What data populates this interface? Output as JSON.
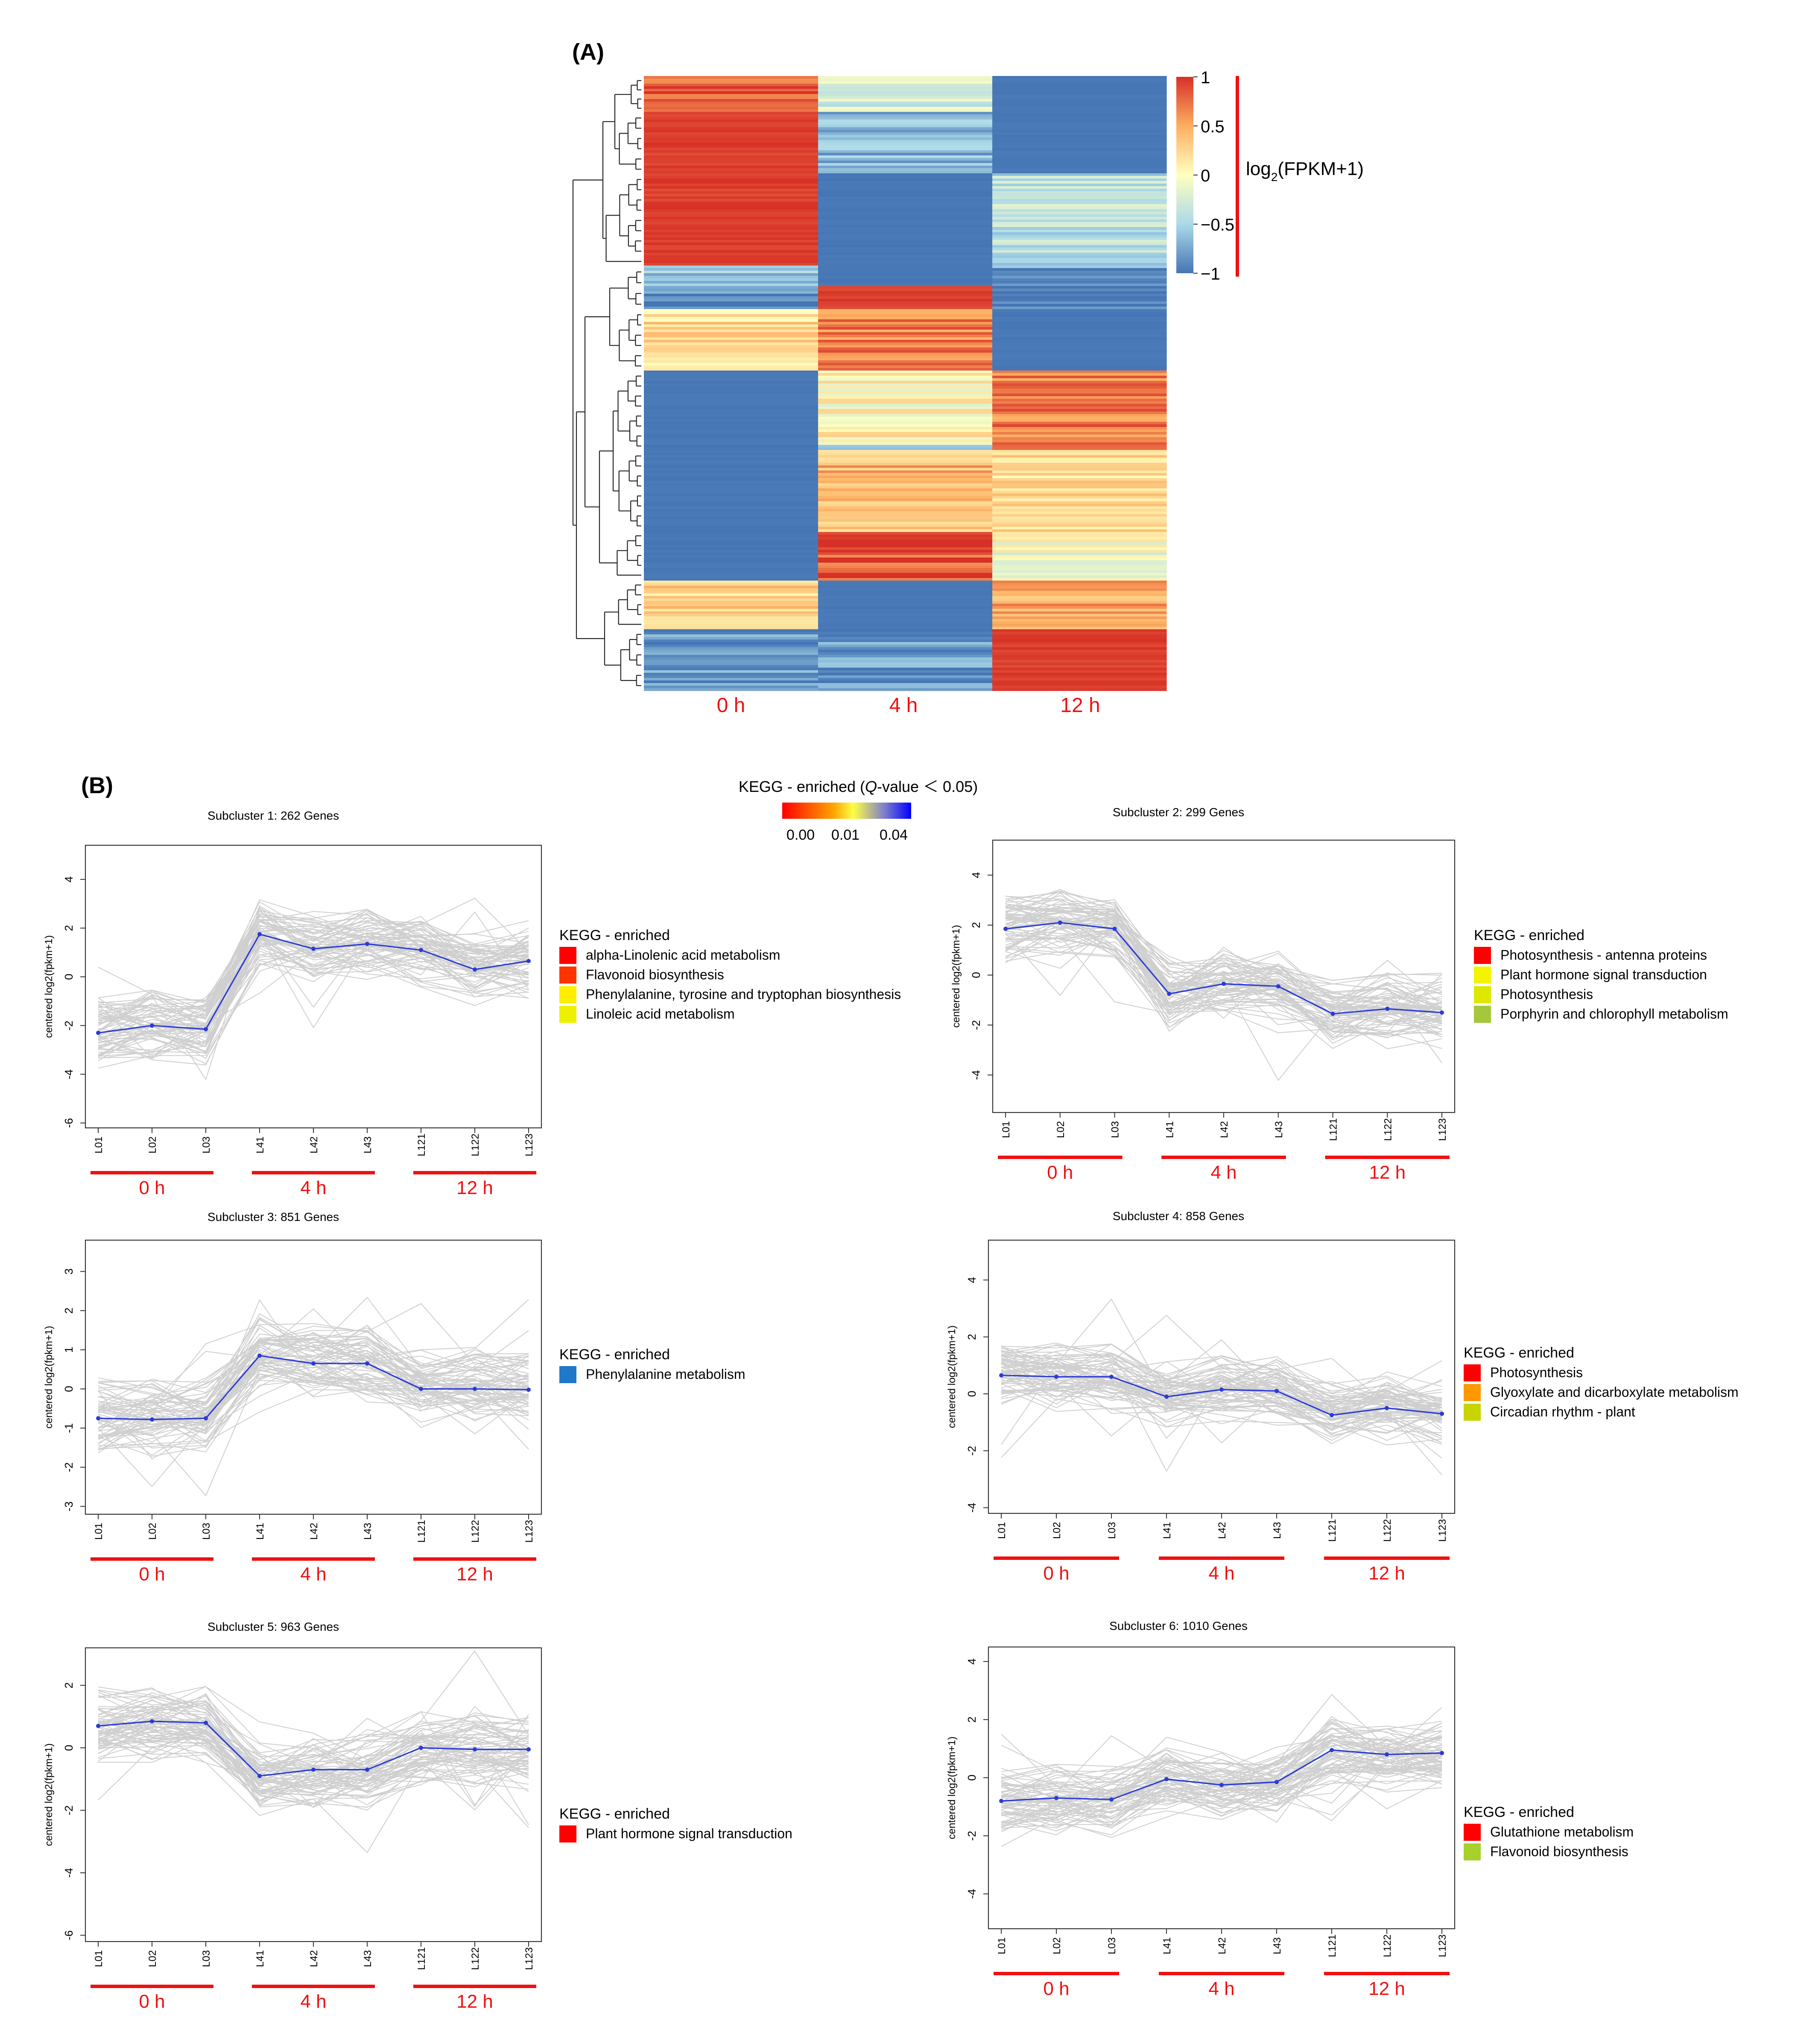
{
  "panel_a_label": "(A)",
  "panel_b_label": "(B)",
  "heatmap": {
    "columns": [
      "0 h",
      "4 h",
      "12 h"
    ],
    "colorbar": {
      "ticks": [
        "1",
        "0.5",
        "0",
        "−0.5",
        "−1"
      ],
      "tick_values": [
        1,
        0.5,
        0,
        -0.5,
        -1
      ]
    },
    "legend_label_main": "log",
    "legend_label_sub": "2",
    "legend_label_rest": "(FPKM+1)",
    "colors": {
      "high": "#d73027",
      "mid": "#ffffbf",
      "low": "#4575b4"
    },
    "blocks": [
      {
        "from": 0.0,
        "to": 0.06,
        "values": [
          0.85,
          -0.3,
          -1.0
        ]
      },
      {
        "from": 0.06,
        "to": 0.16,
        "values": [
          1.0,
          -0.7,
          -1.0
        ]
      },
      {
        "from": 0.16,
        "to": 0.31,
        "values": [
          1.0,
          -1.0,
          -0.4
        ]
      },
      {
        "from": 0.31,
        "to": 0.34,
        "values": [
          -0.6,
          -1.0,
          -0.8
        ]
      },
      {
        "from": 0.34,
        "to": 0.38,
        "values": [
          -0.9,
          1.0,
          -0.95
        ]
      },
      {
        "from": 0.38,
        "to": 0.48,
        "values": [
          0.2,
          0.65,
          -1.0
        ]
      },
      {
        "from": 0.48,
        "to": 0.6,
        "values": [
          -1.0,
          0.05,
          0.7
        ]
      },
      {
        "from": 0.6,
        "to": 0.61,
        "values": [
          -1.0,
          -0.45,
          0.95
        ]
      },
      {
        "from": 0.61,
        "to": 0.74,
        "values": [
          -1.0,
          0.4,
          0.25
        ]
      },
      {
        "from": 0.74,
        "to": 0.82,
        "values": [
          -1.0,
          0.85,
          -0.05
        ]
      },
      {
        "from": 0.82,
        "to": 0.9,
        "values": [
          0.3,
          -1.0,
          0.5
        ]
      },
      {
        "from": 0.9,
        "to": 1.0,
        "values": [
          -0.85,
          -0.8,
          1.0
        ]
      }
    ]
  },
  "kegg_legend": {
    "title_pre": "KEGG - enriched (",
    "title_q": "Q",
    "title_post": "-value ＜ 0.05)",
    "ticks": [
      "0.00",
      "0.01",
      "0.04"
    ]
  },
  "chart_data": [
    {
      "type": "line",
      "title": "Subcluster 1: 262 Genes",
      "ylabel": "centered log2(fpkm+1)",
      "categories": [
        "L01",
        "L02",
        "L03",
        "L41",
        "L42",
        "L43",
        "L121",
        "L122",
        "L123"
      ],
      "groups": [
        "0 h",
        "4 h",
        "12 h"
      ],
      "ylim": [
        -6.2,
        5.4
      ],
      "yticks": [
        -6,
        -4,
        -2,
        0,
        2,
        4
      ],
      "mean": [
        -2.3,
        -2.0,
        -2.15,
        1.75,
        1.15,
        1.35,
        1.1,
        0.3,
        0.65
      ],
      "spread": 1.1,
      "kegg_title": "KEGG - enriched",
      "kegg": [
        {
          "name": "alpha-Linolenic acid metabolism",
          "color": "#ff0000"
        },
        {
          "name": "Flavonoid biosynthesis",
          "color": "#ff3300"
        },
        {
          "name": "Phenylalanine, tyrosine and tryptophan biosynthesis",
          "color": "#ffee00"
        },
        {
          "name": "Linoleic acid metabolism",
          "color": "#eef000"
        }
      ]
    },
    {
      "type": "line",
      "title": "Subcluster 2: 299 Genes",
      "ylabel": "centered log2(fpkm+1)",
      "categories": [
        "L01",
        "L02",
        "L03",
        "L41",
        "L42",
        "L43",
        "L121",
        "L122",
        "L123"
      ],
      "groups": [
        "0 h",
        "4 h",
        "12 h"
      ],
      "ylim": [
        -5.5,
        5.4
      ],
      "yticks": [
        -4,
        -2,
        0,
        2,
        4
      ],
      "mean": [
        1.85,
        2.1,
        1.85,
        -0.75,
        -0.35,
        -0.45,
        -1.55,
        -1.35,
        -1.5
      ],
      "spread": 1.1,
      "kegg_title": "KEGG - enriched",
      "kegg": [
        {
          "name": "Photosynthesis - antenna proteins",
          "color": "#ff0000"
        },
        {
          "name": "Plant hormone signal transduction",
          "color": "#f4f400"
        },
        {
          "name": "Photosynthesis",
          "color": "#dde800"
        },
        {
          "name": "Porphyrin and chlorophyll metabolism",
          "color": "#a4c83a"
        }
      ]
    },
    {
      "type": "line",
      "title": "Subcluster 3: 851 Genes",
      "ylabel": "centered log2(fpkm+1)",
      "categories": [
        "L01",
        "L02",
        "L03",
        "L41",
        "L42",
        "L43",
        "L121",
        "L122",
        "L123"
      ],
      "groups": [
        "0 h",
        "4 h",
        "12 h"
      ],
      "ylim": [
        -3.2,
        3.8
      ],
      "yticks": [
        -3,
        -2,
        -1,
        0,
        1,
        2,
        3
      ],
      "mean": [
        -0.75,
        -0.78,
        -0.75,
        0.85,
        0.65,
        0.65,
        0.0,
        0.0,
        -0.02
      ],
      "spread": 0.75,
      "kegg_title": "KEGG - enriched",
      "kegg": [
        {
          "name": "Phenylalanine metabolism",
          "color": "#1f78c8"
        }
      ]
    },
    {
      "type": "line",
      "title": "Subcluster 4: 858 Genes",
      "ylabel": "centered log2(fpkm+1)",
      "categories": [
        "L01",
        "L02",
        "L03",
        "L41",
        "L42",
        "L43",
        "L121",
        "L122",
        "L123"
      ],
      "groups": [
        "0 h",
        "4 h",
        "12 h"
      ],
      "ylim": [
        -4.2,
        5.4
      ],
      "yticks": [
        -4,
        -2,
        0,
        2,
        4
      ],
      "mean": [
        0.65,
        0.6,
        0.6,
        -0.1,
        0.15,
        0.1,
        -0.75,
        -0.5,
        -0.7
      ],
      "spread": 0.9,
      "kegg_title": "KEGG - enriched",
      "kegg": [
        {
          "name": "Photosynthesis",
          "color": "#ff0000"
        },
        {
          "name": "Glyoxylate and dicarboxylate metabolism",
          "color": "#ff9900"
        },
        {
          "name": "Circadian rhythm - plant",
          "color": "#c8d400"
        }
      ]
    },
    {
      "type": "line",
      "title": "Subcluster 5: 963 Genes",
      "ylabel": "centered log2(fpkm+1)",
      "categories": [
        "L01",
        "L02",
        "L03",
        "L41",
        "L42",
        "L43",
        "L121",
        "L122",
        "L123"
      ],
      "groups": [
        "0 h",
        "4 h",
        "12 h"
      ],
      "ylim": [
        -6.2,
        3.2
      ],
      "yticks": [
        -6,
        -4,
        -2,
        0,
        2
      ],
      "mean": [
        0.7,
        0.85,
        0.8,
        -0.9,
        -0.7,
        -0.7,
        0.0,
        -0.05,
        -0.05
      ],
      "spread": 0.9,
      "kegg_title": "KEGG - enriched",
      "kegg": [
        {
          "name": "Plant hormone signal transduction",
          "color": "#ff0000"
        }
      ]
    },
    {
      "type": "line",
      "title": "Subcluster 6: 1010 Genes",
      "ylabel": "centered log2(fpkm+1)",
      "categories": [
        "L01",
        "L02",
        "L03",
        "L41",
        "L42",
        "L43",
        "L121",
        "L122",
        "L123"
      ],
      "groups": [
        "0 h",
        "4 h",
        "12 h"
      ],
      "ylim": [
        -5.2,
        4.5
      ],
      "yticks": [
        -4,
        -2,
        0,
        2,
        4
      ],
      "mean": [
        -0.8,
        -0.7,
        -0.75,
        -0.05,
        -0.25,
        -0.15,
        0.95,
        0.8,
        0.85
      ],
      "spread": 0.9,
      "kegg_title": "KEGG - enriched",
      "kegg": [
        {
          "name": "Glutathione metabolism",
          "color": "#ff0000"
        },
        {
          "name": "Flavonoid biosynthesis",
          "color": "#a8d02c"
        }
      ]
    }
  ]
}
